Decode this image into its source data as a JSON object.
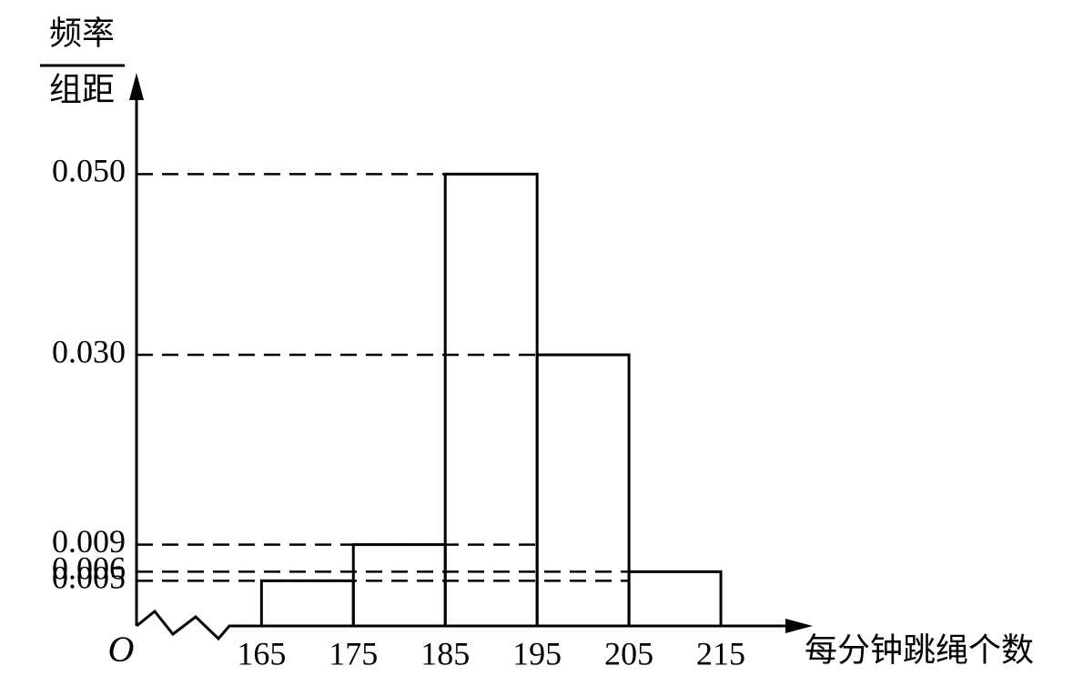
{
  "chart_data": {
    "type": "histogram",
    "y_label_top": "频率",
    "y_label_bottom": "组距",
    "x_label": "每分钟跳绳个数",
    "origin_label": "O",
    "bins": [
      165,
      175,
      185,
      195,
      205,
      215
    ],
    "values": [
      0.005,
      0.009,
      0.05,
      0.03,
      0.006
    ],
    "xlim": [
      151,
      225
    ],
    "xticks": [
      165,
      175,
      185,
      195,
      205,
      215
    ],
    "ylim": [
      0,
      0.06
    ],
    "yticks": [
      {
        "value": 0.005,
        "label": "0.005"
      },
      {
        "value": 0.006,
        "label": "0.006"
      },
      {
        "value": 0.009,
        "label": "0.009"
      },
      {
        "value": 0.03,
        "label": "0.030"
      },
      {
        "value": 0.05,
        "label": "0.050"
      }
    ],
    "grid": true,
    "color": "#000000"
  }
}
